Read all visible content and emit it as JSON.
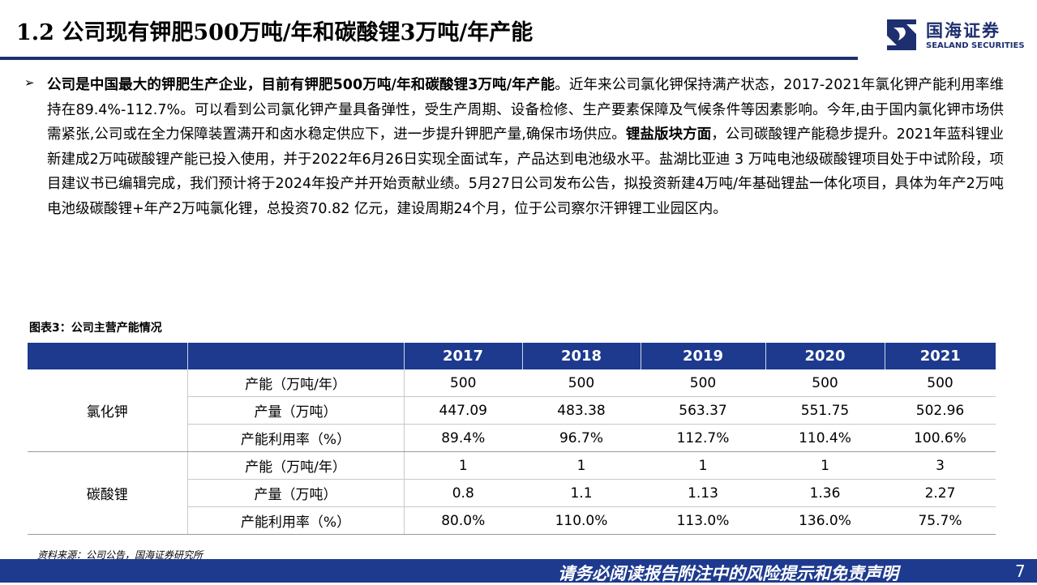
{
  "header": {
    "title": "1.2 公司现有钾肥500万吨/年和碳酸锂3万吨/年产能",
    "logo_cn": "国海证券",
    "logo_en": "SEALAND SECURITIES"
  },
  "body": {
    "bullet": "➢",
    "bold1": "公司是中国最大的钾肥生产企业，目前有钾肥500万吨/年和碳酸锂3万吨/年产能",
    "text1": "。近年来公司氯化钾保持满产状态，2017-2021年氯化钾产能利用率维持在89.4%-112.7%。可以看到公司氯化钾产量具备弹性，受生产周期、设备检修、生产要素保障及气候条件等因素影响。今年,由于国内氯化钾市场供需紧张,公司或在全力保障装置满开和卤水稳定供应下，进一步提升钾肥产量,确保市场供应。",
    "bold2": "锂盐版块方面",
    "text2": "，公司碳酸锂产能稳步提升。2021年蓝科锂业新建成2万吨碳酸锂产能已投入使用，并于2022年6月26日实现全面试车，产品达到电池级水平。盐湖比亚迪 3 万吨电池级碳酸锂项目处于中试阶段，项目建议书已编辑完成，我们预计将于2024年投产并开始贡献业绩。5月27日公司发布公告，拟投资新建4万吨/年基础锂盐一体化项目，具体为年产2万吨电池级碳酸锂+年产2万吨氯化锂，总投资70.82 亿元，建设周期24个月，位于公司察尔汗钾锂工业园区内。"
  },
  "table": {
    "caption": "图表3：公司主营产能情况",
    "years": [
      "2017",
      "2018",
      "2019",
      "2020",
      "2021"
    ],
    "groups": [
      {
        "name": "氯化钾",
        "rows": [
          {
            "metric": "产能（万吨/年）",
            "values": [
              "500",
              "500",
              "500",
              "500",
              "500"
            ]
          },
          {
            "metric": "产量（万吨）",
            "values": [
              "447.09",
              "483.38",
              "563.37",
              "551.75",
              "502.96"
            ]
          },
          {
            "metric": "产能利用率（%）",
            "values": [
              "89.4%",
              "96.7%",
              "112.7%",
              "110.4%",
              "100.6%"
            ]
          }
        ]
      },
      {
        "name": "碳酸锂",
        "rows": [
          {
            "metric": "产能（万吨/年）",
            "values": [
              "1",
              "1",
              "1",
              "1",
              "3"
            ]
          },
          {
            "metric": "产量（万吨）",
            "values": [
              "0.8",
              "1.1",
              "1.13",
              "1.36",
              "2.27"
            ]
          },
          {
            "metric": "产能利用率（%）",
            "values": [
              "80.0%",
              "110.0%",
              "113.0%",
              "136.0%",
              "75.7%"
            ]
          }
        ]
      }
    ],
    "source": "资料来源：公司公告，国海证券研究所"
  },
  "footer": {
    "disclaimer": "请务必阅读报告附注中的风险提示和免责声明",
    "page": "7"
  },
  "colors": {
    "brand": "#1d2f6f",
    "header_fill": "#1d3a8f"
  }
}
